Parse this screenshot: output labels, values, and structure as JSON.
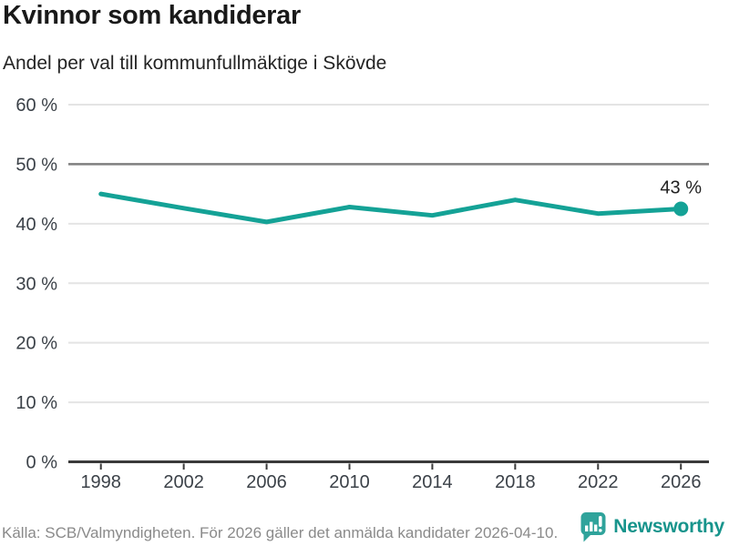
{
  "header": {
    "title": "Kvinnor som kandiderar",
    "subtitle": "Andel per val till kommunfullmäktige i Skövde"
  },
  "chart_data": {
    "type": "line",
    "title": "Kvinnor som kandiderar",
    "subtitle": "Andel per val till kommunfullmäktige i Skövde",
    "categories": [
      "1998",
      "2002",
      "2006",
      "2010",
      "2014",
      "2018",
      "2022",
      "2026"
    ],
    "series": [
      {
        "values": [
          45.0,
          42.6,
          40.3,
          42.8,
          41.4,
          44.0,
          41.7,
          42.5
        ]
      }
    ],
    "end_label": "43 %",
    "xlabel": "",
    "ylabel": "",
    "ylim": [
      0,
      60
    ],
    "yticks": [
      {
        "value": 0,
        "label": "0 %"
      },
      {
        "value": 10,
        "label": "10 %"
      },
      {
        "value": 20,
        "label": "20 %"
      },
      {
        "value": 30,
        "label": "30 %"
      },
      {
        "value": 40,
        "label": "40 %"
      },
      {
        "value": 50,
        "label": "50 %"
      },
      {
        "value": 60,
        "label": "60 %"
      }
    ],
    "reference_line": 50,
    "grid": true,
    "legend": "none",
    "marker": "last-point-only"
  },
  "footer": {
    "source": "Källa: SCB/Valmyndigheten. För 2026 gäller det anmälda kandidater 2026-04-10.",
    "brand": "Newsworthy"
  },
  "colors": {
    "accent": "#14a296",
    "reference_line": "#7f7f7f",
    "gridline": "#e4e4e4",
    "axis": "#3a3a3a",
    "logo_teal": "#2fa39b",
    "brand_text": "#17948c"
  }
}
